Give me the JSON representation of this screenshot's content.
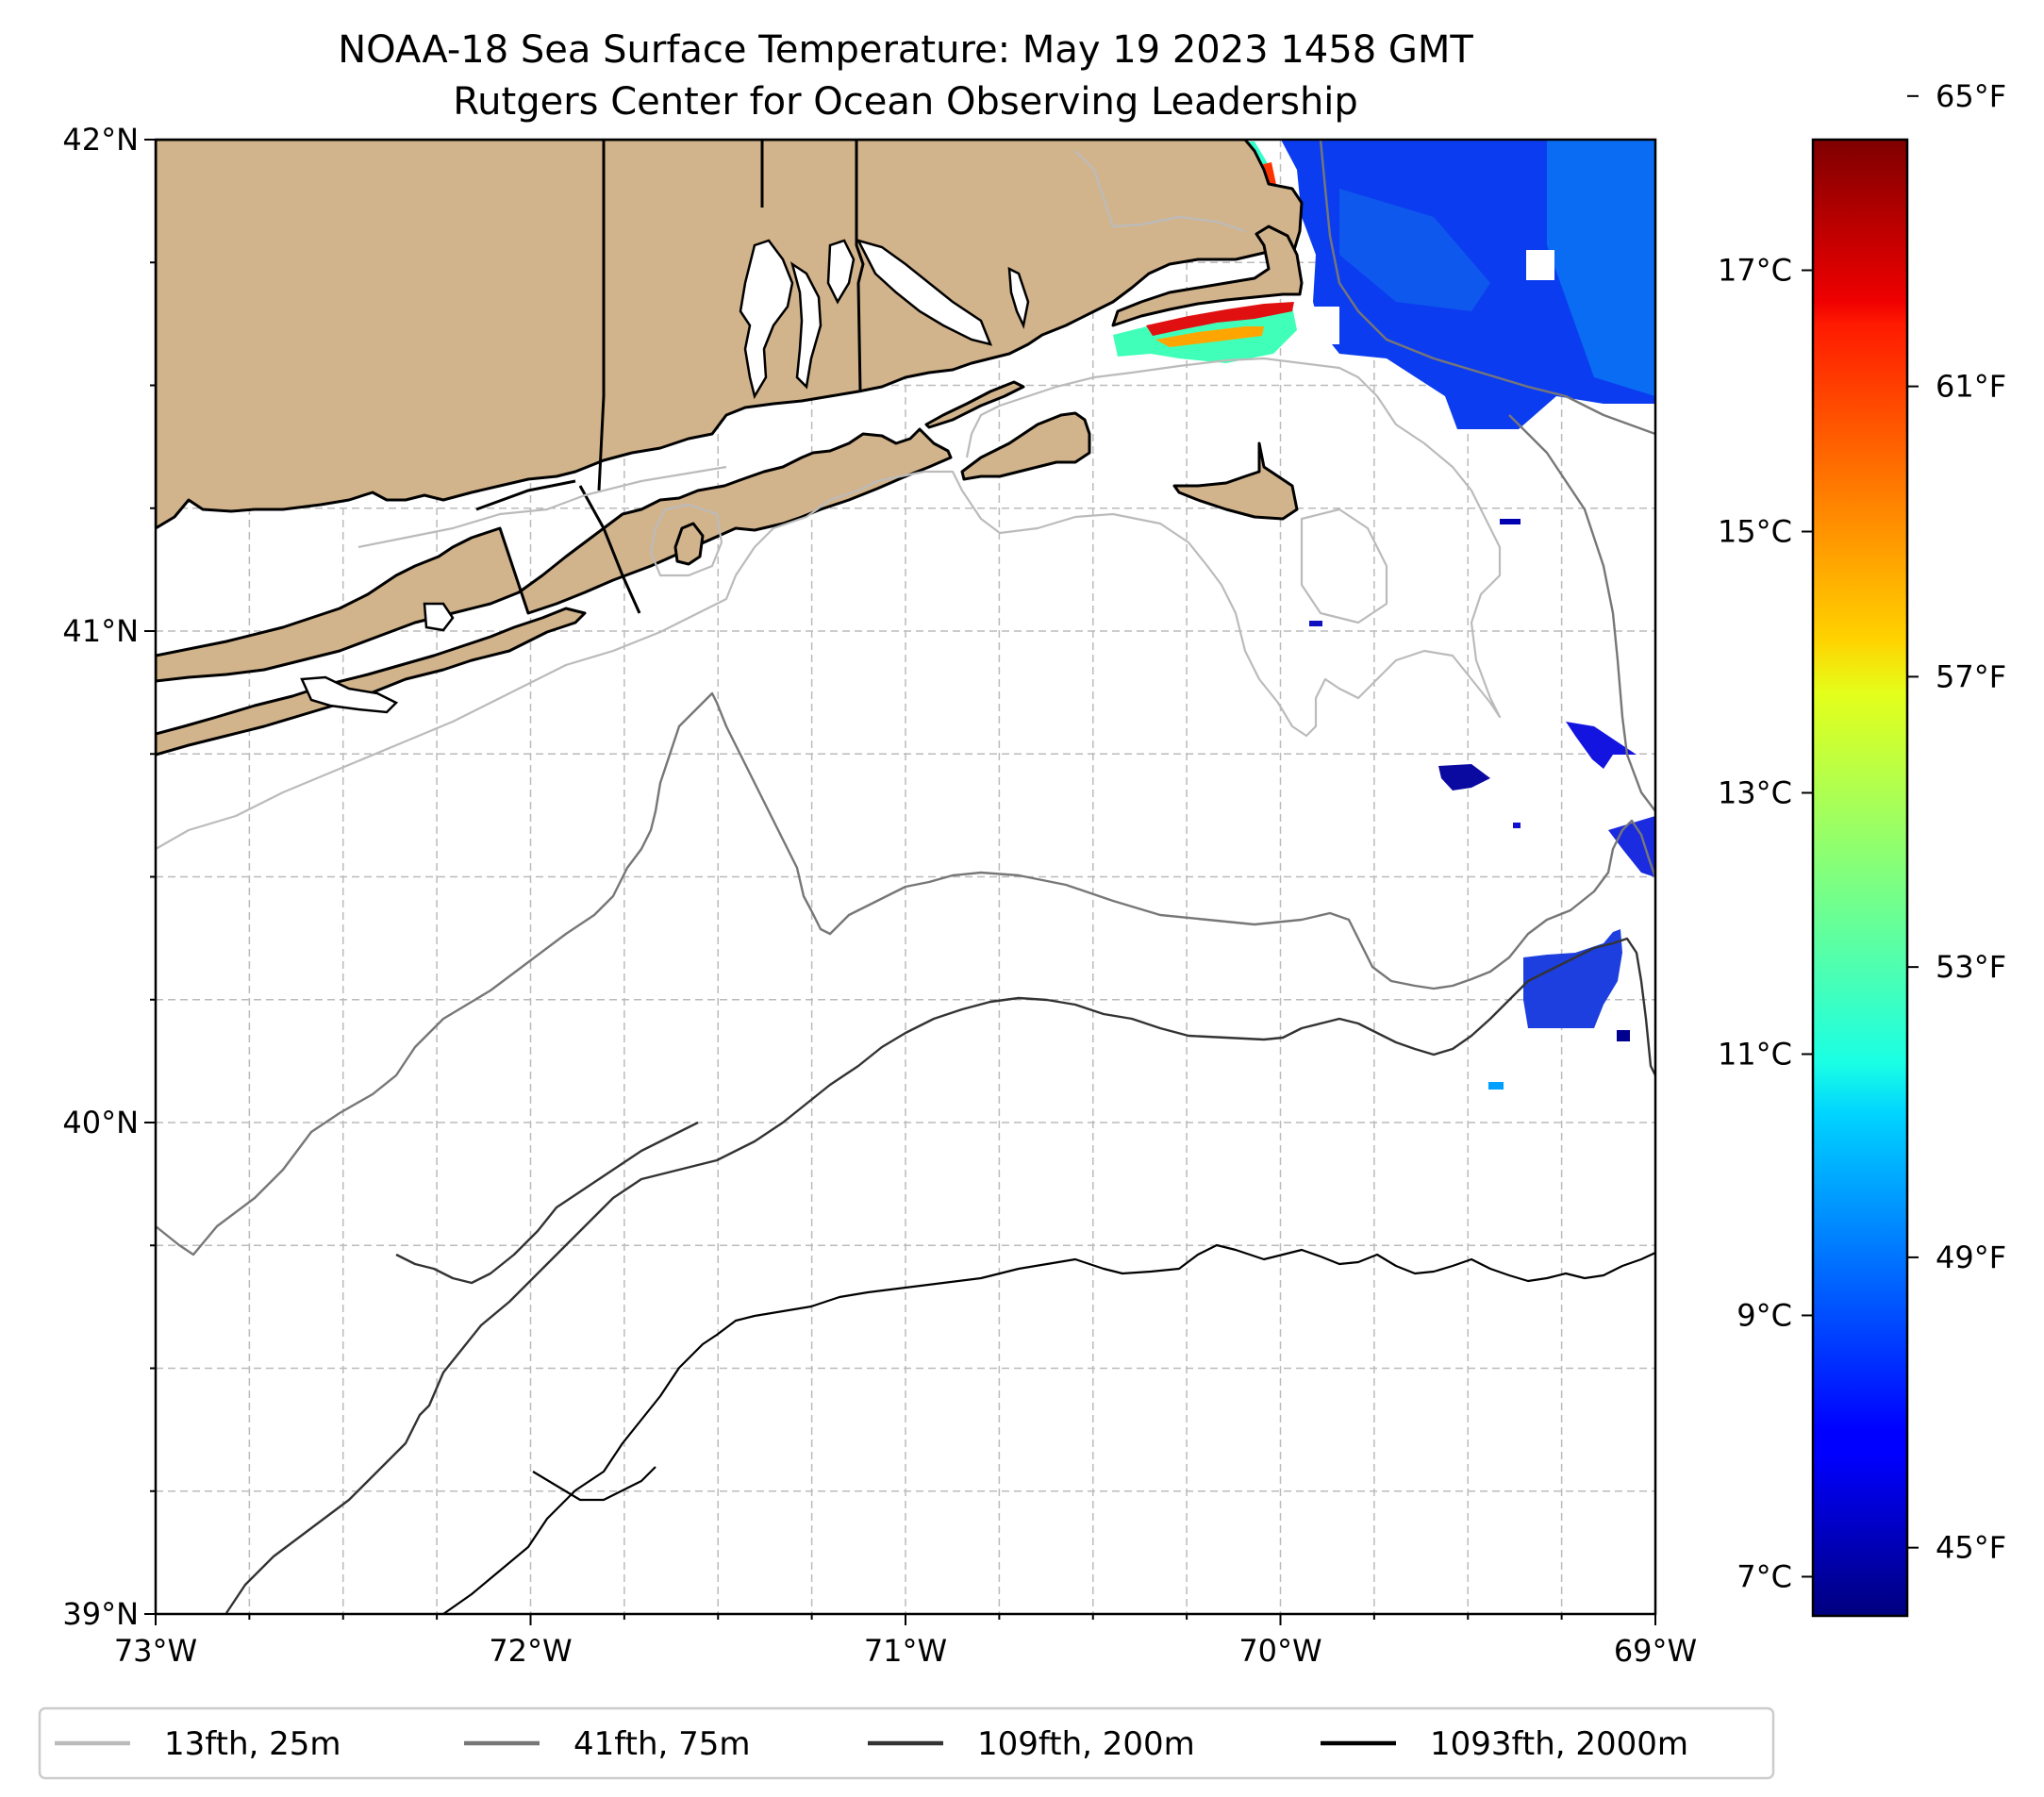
{
  "title": {
    "line1": "NOAA-18 Sea Surface Temperature: May 19 2023 1458 GMT",
    "line2": "Rutgers Center for Ocean Observing Leadership"
  },
  "map": {
    "lon_range": [
      -73,
      -69
    ],
    "lat_range": [
      39,
      42
    ],
    "lon_ticks": [
      {
        "value": -73,
        "label": "73°W"
      },
      {
        "value": -72,
        "label": "72°W"
      },
      {
        "value": -71,
        "label": "71°W"
      },
      {
        "value": -70,
        "label": "70°W"
      },
      {
        "value": -69,
        "label": "69°W"
      }
    ],
    "lat_ticks": [
      {
        "value": 42,
        "label": "42°N"
      },
      {
        "value": 41,
        "label": "41°N"
      },
      {
        "value": 40,
        "label": "40°N"
      },
      {
        "value": 39,
        "label": "39°N"
      }
    ],
    "land_color": "#d2b48c",
    "gridlines": true
  },
  "colorbar": {
    "colormap": "jet",
    "celsius_range": [
      6.7,
      18
    ],
    "celsius_ticks": [
      {
        "value": 7,
        "label": "7°C"
      },
      {
        "value": 9,
        "label": "9°C"
      },
      {
        "value": 11,
        "label": "11°C"
      },
      {
        "value": 13,
        "label": "13°C"
      },
      {
        "value": 15,
        "label": "15°C"
      },
      {
        "value": 17,
        "label": "17°C"
      }
    ],
    "fahrenheit_ticks": [
      {
        "value": 45,
        "label": "45°F"
      },
      {
        "value": 49,
        "label": "49°F"
      },
      {
        "value": 53,
        "label": "53°F"
      },
      {
        "value": 57,
        "label": "57°F"
      },
      {
        "value": 61,
        "label": "61°F"
      },
      {
        "value": 65,
        "label": "65°F"
      }
    ]
  },
  "legend": [
    {
      "label": "13fth, 25m",
      "color": "#bbbbbb"
    },
    {
      "label": "41fth, 75m",
      "color": "#777777"
    },
    {
      "label": "109fth, 200m",
      "color": "#333333"
    },
    {
      "label": "1093fth, 2000m",
      "color": "#000000"
    }
  ]
}
